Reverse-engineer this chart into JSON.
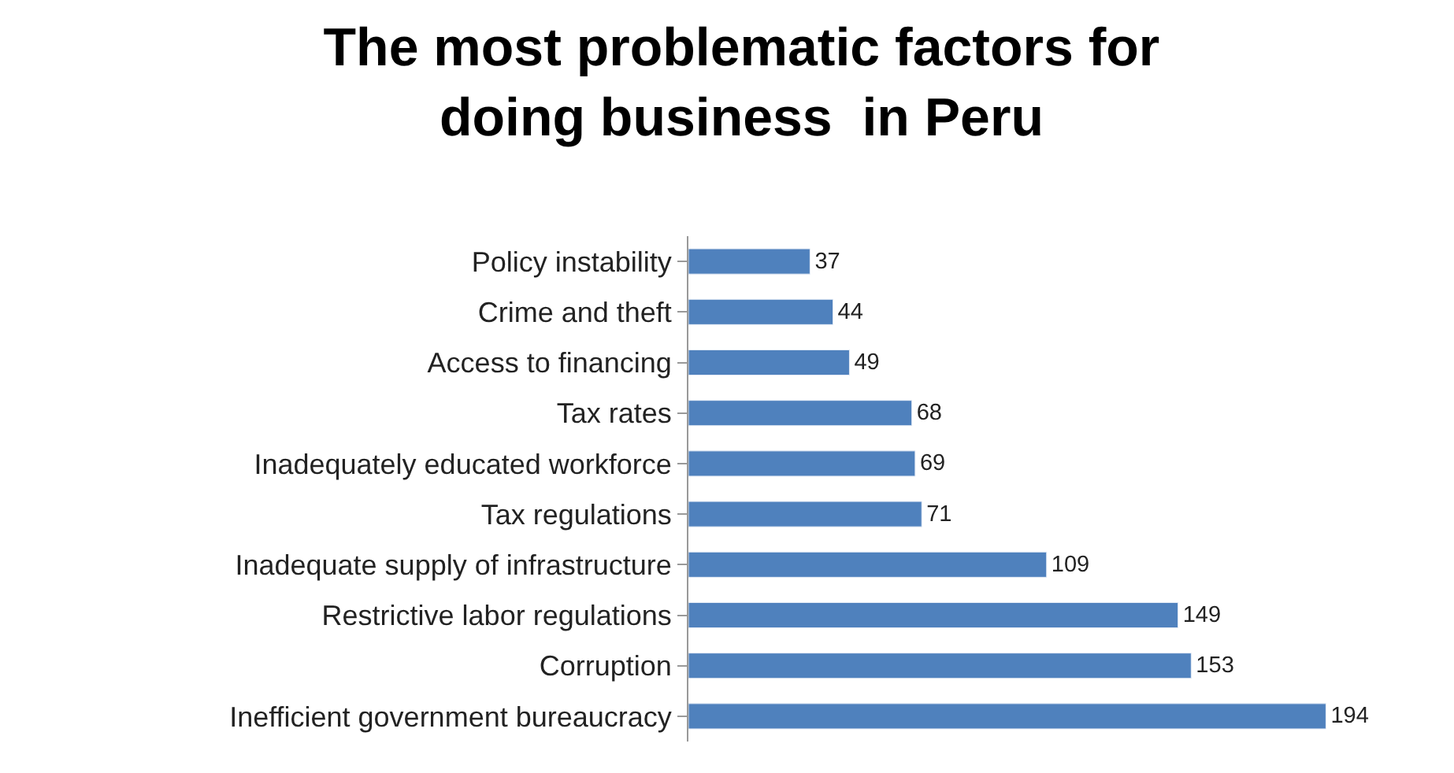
{
  "chart_data": {
    "type": "bar",
    "orientation": "horizontal",
    "title": "The most problematic factors for\ndoing business  in Peru",
    "categories": [
      "Policy instability",
      "Crime and theft",
      "Access to financing",
      "Tax rates",
      "Inadequately educated workforce",
      "Tax regulations",
      "Inadequate supply of infrastructure",
      "Restrictive labor regulations",
      "Corruption",
      "Inefficient government bureaucracy"
    ],
    "values": [
      37,
      44,
      49,
      68,
      69,
      71,
      109,
      149,
      153,
      194
    ],
    "color": "#4f81bd",
    "data_labels": true
  }
}
